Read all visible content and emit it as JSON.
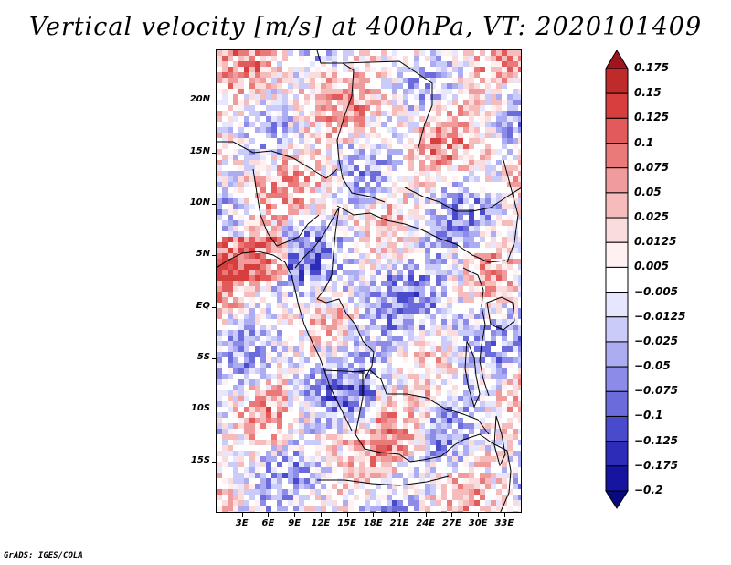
{
  "title": "Vertical velocity [m/s] at 400hPa, VT: 2020101409",
  "credit": "GrADS: IGES/COLA",
  "map": {
    "lon_range": [
      0,
      35
    ],
    "lat_range": [
      -20,
      25
    ],
    "lat_labels": [
      "20N",
      "15N",
      "10N",
      "5N",
      "EQ",
      "5S",
      "10S",
      "15S"
    ],
    "lat_values": [
      20,
      15,
      10,
      5,
      0,
      -5,
      -10,
      -15
    ],
    "lon_labels": [
      "3E",
      "6E",
      "9E",
      "12E",
      "15E",
      "18E",
      "21E",
      "24E",
      "27E",
      "30E",
      "33E"
    ],
    "lon_values": [
      3,
      6,
      9,
      12,
      15,
      18,
      21,
      24,
      27,
      30,
      33
    ]
  },
  "colorbar": {
    "labels": [
      "0.175",
      "0.15",
      "0.125",
      "0.1",
      "0.075",
      "0.05",
      "0.025",
      "0.0125",
      "0.005",
      "−0.005",
      "−0.0125",
      "−0.025",
      "−0.05",
      "−0.075",
      "−0.1",
      "−0.125",
      "−0.175",
      "−0.2"
    ],
    "colors": [
      "#a0141e",
      "#bf2a2a",
      "#d73f3f",
      "#e25a5a",
      "#ea7a7a",
      "#f09c9c",
      "#f6bcbc",
      "#fadcdc",
      "#fff1f1",
      "#ffffff",
      "#e6e6ff",
      "#cbcbfa",
      "#acacf2",
      "#8c8ce8",
      "#6b6bdc",
      "#4a4acc",
      "#2c2cb8",
      "#1515a0",
      "#0a0a80"
    ]
  }
}
